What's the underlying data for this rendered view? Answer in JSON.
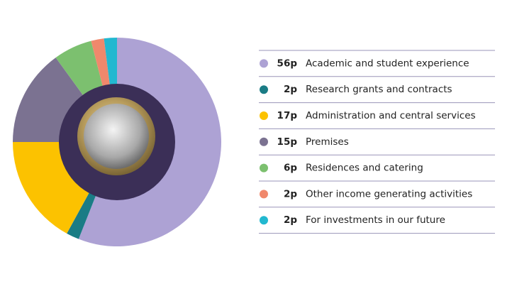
{
  "chart_data": {
    "type": "donut",
    "categories": [
      "Academic and student experience",
      "Research grants and contracts",
      "Administration and central services",
      "Premises",
      "Residences and catering",
      "Other income generating activities",
      "For investments in our future"
    ],
    "values": [
      56,
      2,
      17,
      15,
      6,
      2,
      2
    ],
    "value_labels": [
      "56p",
      "2p",
      "17p",
      "15p",
      "6p",
      "2p",
      "2p"
    ],
    "colors": [
      "#ada2d4",
      "#1a7c85",
      "#fcc200",
      "#7b7291",
      "#7cc06f",
      "#f0886c",
      "#22b8d0"
    ]
  }
}
